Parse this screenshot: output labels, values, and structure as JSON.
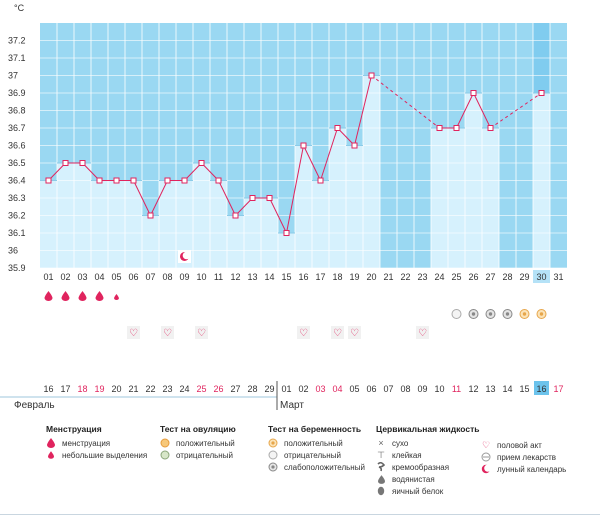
{
  "chart_data": {
    "type": "bar",
    "unit_label": "°C",
    "ylim": [
      35.9,
      37.3
    ],
    "yticks": [
      "35.9",
      "36",
      "36.1",
      "36.2",
      "36.3",
      "36.4",
      "36.5",
      "36.6",
      "36.7",
      "36.8",
      "36.9",
      "37",
      "37.1",
      "37.2"
    ],
    "cycle_days": [
      "01",
      "02",
      "03",
      "04",
      "05",
      "06",
      "07",
      "08",
      "09",
      "10",
      "11",
      "12",
      "13",
      "14",
      "15",
      "16",
      "17",
      "18",
      "19",
      "20",
      "21",
      "22",
      "23",
      "24",
      "25",
      "26",
      "27",
      "28",
      "29",
      "30",
      "31"
    ],
    "values": [
      36.4,
      36.5,
      36.5,
      36.4,
      36.4,
      36.4,
      36.2,
      36.4,
      36.4,
      36.5,
      36.4,
      36.2,
      36.3,
      36.3,
      36.1,
      36.6,
      36.4,
      36.7,
      36.6,
      37.0,
      null,
      null,
      null,
      36.7,
      36.7,
      36.9,
      36.7,
      null,
      null,
      36.9,
      null
    ],
    "highlight_day_index": 29,
    "calendar_dates": [
      "16",
      "17",
      "18",
      "19",
      "20",
      "21",
      "22",
      "23",
      "24",
      "25",
      "26",
      "27",
      "28",
      "29",
      "01",
      "02",
      "03",
      "04",
      "05",
      "06",
      "07",
      "08",
      "09",
      "10",
      "11",
      "12",
      "13",
      "14",
      "15",
      "16",
      "17"
    ],
    "calendar_red": [
      2,
      3,
      9,
      10,
      16,
      17,
      24,
      30
    ],
    "months": [
      {
        "label": "Февраль",
        "start_index": 0
      },
      {
        "label": "Март",
        "start_index": 14
      }
    ],
    "markers": {
      "menstruation": [
        0,
        1,
        2,
        3
      ],
      "spotting": [
        4
      ],
      "lunar": [
        8
      ],
      "pregnancy_test": [
        {
          "day": 24,
          "kind": "negative"
        },
        {
          "day": 25,
          "kind": "weak"
        },
        {
          "day": 26,
          "kind": "weak"
        },
        {
          "day": 27,
          "kind": "weak"
        },
        {
          "day": 28,
          "kind": "positive"
        },
        {
          "day": 29,
          "kind": "positive"
        }
      ],
      "intercourse": [
        5,
        7,
        9,
        15,
        17,
        18,
        22
      ]
    },
    "colors": {
      "plot_bg": "#9ad8f2",
      "bar": "#d6f1fd",
      "bar_edge": "#8ccbe8",
      "line": "#e0245e",
      "highlight": "#6cc3ec",
      "grid": "#ffffff"
    }
  },
  "legend": {
    "menstruation": {
      "title": "Менструация",
      "items": [
        "менструация",
        "небольшие выделения"
      ]
    },
    "ovulation_test": {
      "title": "Тест на овуляцию",
      "items": [
        "положительный",
        "отрицательный"
      ]
    },
    "pregnancy_test": {
      "title": "Тест на беременность",
      "items": [
        "положительный",
        "отрицательный",
        "слабоположительный"
      ]
    },
    "cervical_fluid": {
      "title": "Цервикальная жидкость",
      "items": [
        "сухо",
        "клейкая",
        "кремообразная",
        "водянистая",
        "яичный белок"
      ]
    },
    "other": {
      "items": [
        "половой акт",
        "прием лекарств",
        "лунный календарь"
      ]
    }
  }
}
